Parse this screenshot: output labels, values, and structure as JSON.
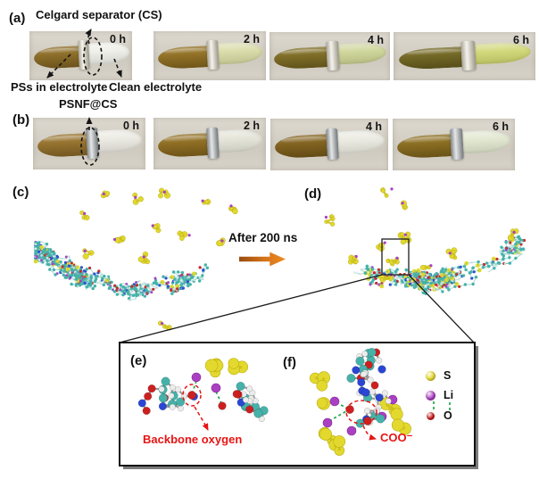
{
  "panels": {
    "a": {
      "label": "(a)",
      "separator_annotation": "Celgard separator (CS)",
      "left_liquid_annotation": "PSs in electrolyte",
      "right_liquid_annotation": "Clean electrolyte",
      "ring_color": "#ded8c4",
      "photos": [
        {
          "time": "0 h",
          "left_color": "#8a6a24",
          "right_color": "#edeee6"
        },
        {
          "time": "2 h",
          "left_color": "#8f6e20",
          "right_color": "#d6d9a2"
        },
        {
          "time": "4 h",
          "left_color": "#7c6a22",
          "right_color": "#cbd292"
        },
        {
          "time": "6 h",
          "left_color": "#6f6420",
          "right_color": "#ced46e"
        }
      ]
    },
    "b": {
      "label": "(b)",
      "separator_annotation": "PSNF@CS",
      "ring_color": "#a9afb3",
      "photos": [
        {
          "time": "0 h",
          "left_color": "#94702a",
          "right_color": "#eae8e0"
        },
        {
          "time": "2 h",
          "left_color": "#8d6b1e",
          "right_color": "#e2e2d6"
        },
        {
          "time": "4 h",
          "left_color": "#7f5f1a",
          "right_color": "#e9e9df"
        },
        {
          "time": "6 h",
          "left_color": "#876a1c",
          "right_color": "#dfe5cc"
        }
      ]
    },
    "c": {
      "label": "(c)"
    },
    "d": {
      "label": "(d)"
    },
    "e": {
      "label": "(e)",
      "annotation": "Backbone oxygen"
    },
    "f": {
      "label": "(f)",
      "annotation": "COO⁻"
    }
  },
  "transition": {
    "label": "After 200 ns",
    "arrow_color": "#d4731a"
  },
  "legend": [
    {
      "label": "S",
      "color": "#e3d92e"
    },
    {
      "label": "Li",
      "color": "#ab3fc1"
    },
    {
      "label": "O",
      "color": "#cc1d1d"
    }
  ],
  "atom_colors": {
    "carbon": "#45b2aa",
    "hydrogen": "#ececec",
    "nitrogen": "#2b46d4",
    "oxygen": "#cc2020",
    "sulfur": "#e3d92e",
    "lithium": "#ab3fc1",
    "coordination_bond": "#1fa84f"
  }
}
